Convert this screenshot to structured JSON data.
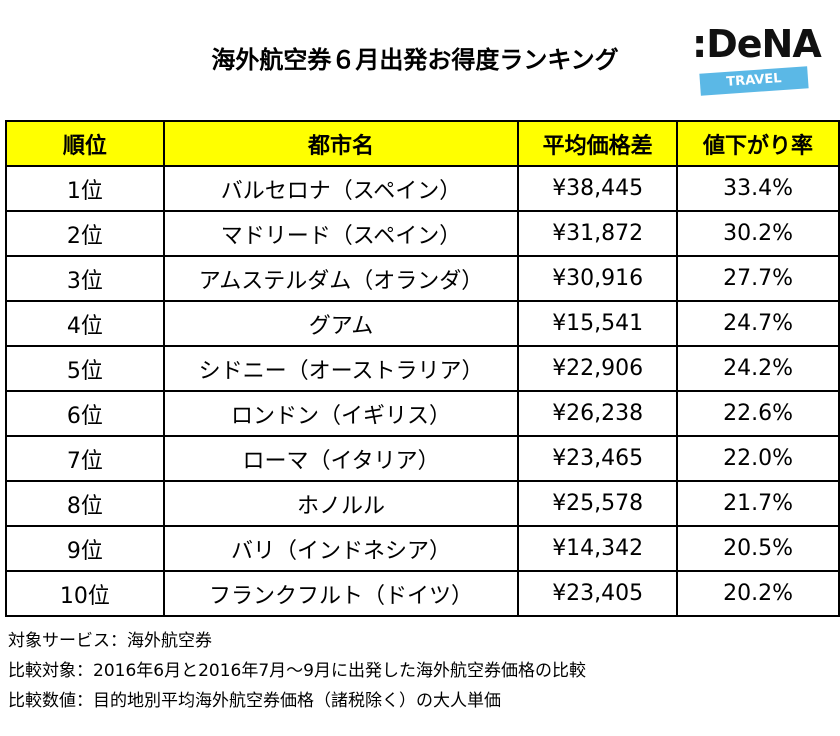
{
  "header": {
    "title": "海外航空券６月出発お得度ランキング",
    "logo": {
      "mark": ":DeNA",
      "sub": "TRAVEL"
    }
  },
  "table": {
    "columns": [
      "順位",
      "都市名",
      "平均価格差",
      "値下がり率"
    ],
    "rows": [
      [
        "1位",
        "バルセロナ（スペイン）",
        "¥38,445",
        "33.4%"
      ],
      [
        "2位",
        "マドリード（スペイン）",
        "¥31,872",
        "30.2%"
      ],
      [
        "3位",
        "アムステルダム（オランダ）",
        "¥30,916",
        "27.7%"
      ],
      [
        "4位",
        "グアム",
        "¥15,541",
        "24.7%"
      ],
      [
        "5位",
        "シドニー（オーストラリア）",
        "¥22,906",
        "24.2%"
      ],
      [
        "6位",
        "ロンドン（イギリス）",
        "¥26,238",
        "22.6%"
      ],
      [
        "7位",
        "ローマ（イタリア）",
        "¥23,465",
        "22.0%"
      ],
      [
        "8位",
        "ホノルル",
        "¥25,578",
        "21.7%"
      ],
      [
        "9位",
        "バリ（インドネシア）",
        "¥14,342",
        "20.5%"
      ],
      [
        "10位",
        "フランクフルト（ドイツ）",
        "¥23,405",
        "20.2%"
      ]
    ]
  },
  "notes": [
    "対象サービス：海外航空券",
    "比較対象：2016年6月と2016年7月～9月に出発した海外航空券価格の比較",
    "比較数値：目的地別平均海外航空券価格（諸税除く）の大人単価"
  ]
}
